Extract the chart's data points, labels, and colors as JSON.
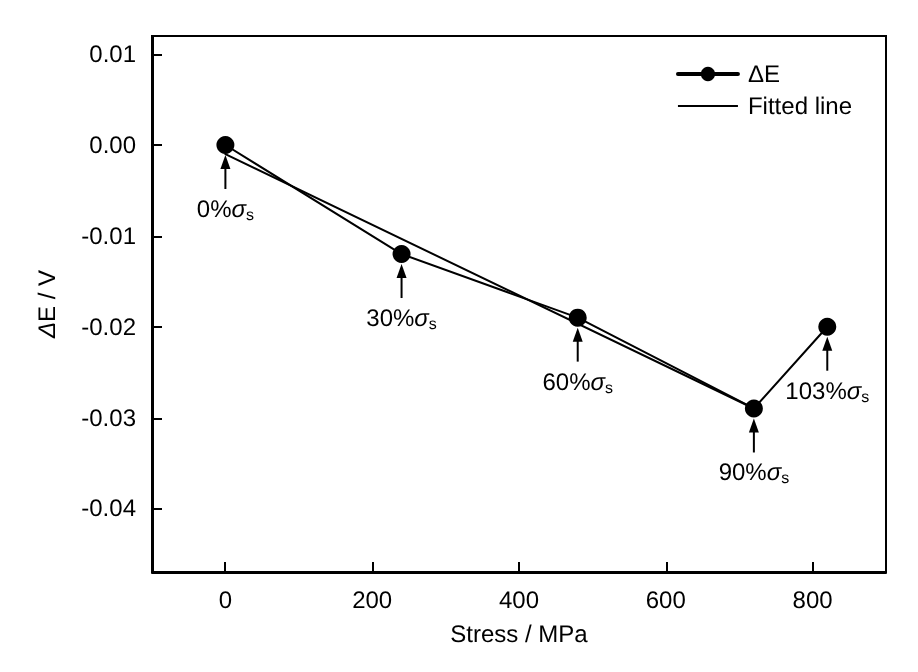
{
  "chart_data": {
    "type": "line",
    "xlabel": "Stress / MPa",
    "ylabel": "ΔE / V",
    "xlim": [
      -100,
      900
    ],
    "xticks": [
      0,
      200,
      400,
      600,
      800
    ],
    "ylim": [
      -0.047,
      0.012
    ],
    "yticks": [
      {
        "value": 0.01,
        "label": "0.01"
      },
      {
        "value": 0,
        "label": "0.00"
      },
      {
        "value": -0.01,
        "label": "-0.01"
      },
      {
        "value": -0.02,
        "label": "-0.02"
      },
      {
        "value": -0.03,
        "label": "-0.03"
      },
      {
        "value": -0.04,
        "label": "-0.04"
      }
    ],
    "series": [
      {
        "name": "ΔE",
        "color": "#000000",
        "marker": "circle",
        "x": [
          0,
          240,
          480,
          720,
          820
        ],
        "values": [
          0,
          -0.012,
          -0.019,
          -0.029,
          -0.02
        ]
      },
      {
        "name": "Fitted line",
        "color": "#000000",
        "marker": "none",
        "x": [
          0,
          720
        ],
        "values": [
          -0.001,
          -0.029
        ]
      }
    ],
    "annotations": [
      {
        "text": "0%σ$_{s}$",
        "x": 0,
        "y": 0
      },
      {
        "text": "30%σ$_{s}$",
        "x": 240,
        "y": -0.012
      },
      {
        "text": "60%σ$_{s}$",
        "x": 480,
        "y": -0.019
      },
      {
        "text": "90%σ$_{s}$",
        "x": 720,
        "y": -0.029
      },
      {
        "text": "103%σ$_{s}$",
        "x": 820,
        "y": -0.02
      }
    ],
    "legend": "top right"
  }
}
